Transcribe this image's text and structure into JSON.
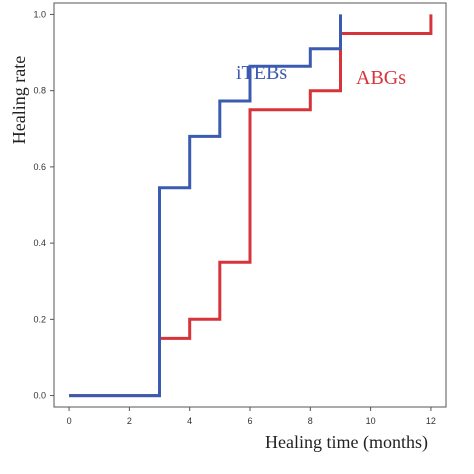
{
  "chart_data": {
    "type": "line",
    "step": true,
    "title": "",
    "xlabel": "Healing  time (months)",
    "ylabel": "Healing rate",
    "xlim": [
      -0.5,
      12.5
    ],
    "ylim": [
      -0.03,
      1.03
    ],
    "x_ticks": [
      0,
      2,
      4,
      6,
      8,
      10,
      12
    ],
    "y_ticks": [
      "0.0",
      "0.2",
      "0.4",
      "0.6",
      "0.8",
      "1.0"
    ],
    "grid": false,
    "legend": "inline labels near lines",
    "series": [
      {
        "name": "iTEBs",
        "color": "#3a5bb0",
        "x": [
          0,
          3,
          3,
          4,
          4,
          5,
          5,
          6,
          6,
          8,
          8,
          9,
          9
        ],
        "y": [
          0,
          0,
          0.545,
          0.545,
          0.68,
          0.68,
          0.773,
          0.773,
          0.864,
          0.864,
          0.91,
          0.91,
          1.0
        ]
      },
      {
        "name": "ABGs",
        "color": "#d6333a",
        "x": [
          0,
          3,
          3,
          4,
          4,
          5,
          5,
          6,
          6,
          8,
          8,
          9,
          9,
          12,
          12
        ],
        "y": [
          0,
          0,
          0.15,
          0.15,
          0.2,
          0.2,
          0.35,
          0.35,
          0.75,
          0.75,
          0.8,
          0.8,
          0.95,
          0.95,
          1.0
        ]
      }
    ]
  }
}
